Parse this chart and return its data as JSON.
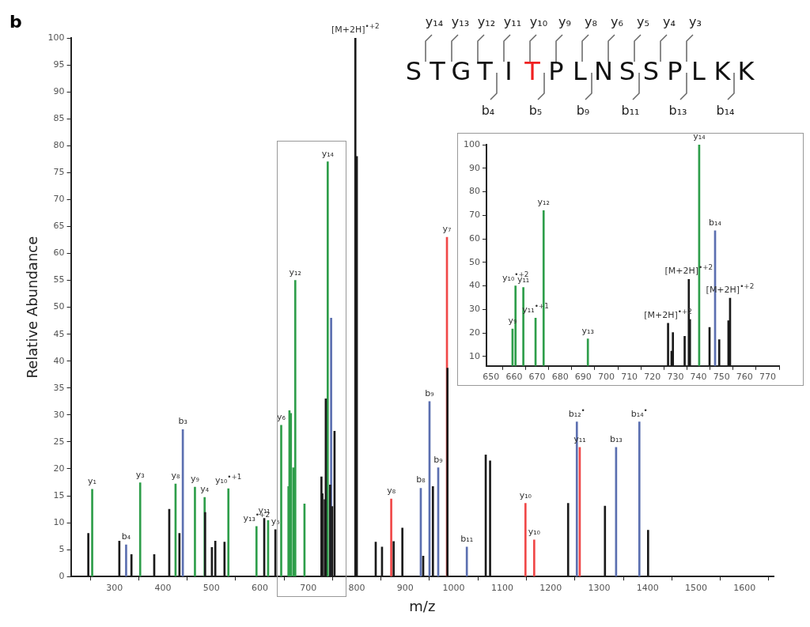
{
  "chart_data": [
    {
      "type": "bar",
      "xlabel": "m/z",
      "ylabel": "Relative Abundance",
      "xlim": [
        210,
        1660
      ],
      "ylim": [
        0,
        100
      ],
      "xticks": [
        300,
        400,
        500,
        600,
        700,
        800,
        900,
        1000,
        1100,
        1200,
        1300,
        1400,
        1500,
        1600
      ],
      "yticks": [
        0,
        5,
        10,
        15,
        20,
        25,
        30,
        35,
        40,
        45,
        50,
        55,
        60,
        65,
        70,
        75,
        80,
        85,
        90,
        95,
        100
      ],
      "series": [
        {
          "color": "#1a1a1a",
          "x": [
            246,
            310,
            335,
            382,
            413,
            434,
            487,
            501,
            508,
            527,
            609,
            632,
            727,
            729,
            734,
            736,
            745,
            749,
            754,
            797,
            800,
            839,
            852,
            876,
            894,
            937,
            957,
            987,
            1066,
            1075,
            1236,
            1312,
            1401
          ],
          "values": [
            8.0,
            6.6,
            4.1,
            4.1,
            12.5,
            8.0,
            11.9,
            5.4,
            6.6,
            6.4,
            10.8,
            8.7,
            18.5,
            15.4,
            14.3,
            33,
            17,
            13,
            27,
            100,
            78,
            6.4,
            5.5,
            6.5,
            9.0,
            3.8,
            16.7,
            38.7,
            22.6,
            21.5,
            13.6,
            13.1,
            8.6
          ]
        },
        {
          "color": "#2e9e4a",
          "x": [
            254,
            353,
            426,
            466,
            486,
            535,
            593,
            617,
            644,
            659,
            661,
            664,
            669,
            673,
            692,
            740
          ],
          "values": [
            16.2,
            17.4,
            17.2,
            16.6,
            14.7,
            16.3,
            9.3,
            10.4,
            28.1,
            16.7,
            30.8,
            30.3,
            20.2,
            55,
            13.5,
            77
          ]
        },
        {
          "color": "#5b6fb0",
          "x": [
            324,
            441,
            747,
            932,
            950,
            968,
            1027,
            1254,
            1335,
            1383
          ],
          "values": [
            5.9,
            27.3,
            48,
            16.4,
            32.5,
            20.2,
            5.5,
            28.7,
            24.0,
            28.7
          ]
        },
        {
          "color": "#f04848",
          "x": [
            871,
            986,
            1148,
            1166,
            1260
          ],
          "values": [
            14.4,
            63,
            13.6,
            6.8,
            24.0
          ]
        }
      ],
      "annotations": [
        "b",
        {
          "text": "y₁",
          "x": 254,
          "y": 16.2
        },
        {
          "text": "b₄",
          "x": 324,
          "y": 5.9
        },
        {
          "text": "y₃",
          "x": 353,
          "y": 17.4
        },
        {
          "text": "y₈",
          "x": 426,
          "y": 17.2
        },
        {
          "text": "b₃",
          "x": 441,
          "y": 27.3
        },
        {
          "text": "y₉",
          "x": 466,
          "y": 16.6
        },
        {
          "text": "y₄",
          "x": 486,
          "y": 14.7
        },
        {
          "text": "y₁₀$^{•+1}$",
          "x": 535,
          "y": 16.3
        },
        {
          "text": "y₁₃$^{•+2}$",
          "x": 593,
          "y": 9.3
        },
        {
          "text": "y₁₁",
          "x": 609,
          "y": 10.8
        },
        {
          "text": "y₅",
          "x": 632,
          "y": 8.7
        },
        {
          "text": "y₆",
          "x": 644,
          "y": 28.1
        },
        {
          "text": "y₁₂",
          "x": 673,
          "y": 55
        },
        {
          "text": "y₁₄",
          "x": 740,
          "y": 77
        },
        {
          "text": "[M+2H]$^{•+2}$",
          "x": 797,
          "y": 100
        },
        {
          "text": "y₈",
          "x": 871,
          "y": 14.4
        },
        {
          "text": "b₈",
          "x": 932,
          "y": 16.4
        },
        {
          "text": "b₉",
          "x": 950,
          "y": 32.5
        },
        {
          "text": "b₉",
          "x": 968,
          "y": 20.2
        },
        {
          "text": "y₇",
          "x": 986,
          "y": 63
        },
        {
          "text": "b₁₁",
          "x": 1027,
          "y": 5.5
        },
        {
          "text": "y₁₀",
          "x": 1148,
          "y": 13.6
        },
        {
          "text": "y₁₀",
          "x": 1166,
          "y": 6.8
        },
        {
          "text": "b₁₂$^{•}$",
          "x": 1254,
          "y": 28.7
        },
        {
          "text": "y₁₁",
          "x": 1260,
          "y": 24.0
        },
        {
          "text": "b₁₃",
          "x": 1335,
          "y": 24.0
        },
        {
          "text": "b₁₄$^{•}$",
          "x": 1383,
          "y": 28.7
        }
      ]
    },
    {
      "type": "bar",
      "xlim": [
        648,
        775
      ],
      "ylim": [
        6,
        100
      ],
      "xticks": [
        650,
        660,
        670,
        680,
        690,
        700,
        710,
        720,
        730,
        740,
        750,
        760,
        770
      ],
      "yticks": [
        10,
        20,
        30,
        40,
        50,
        60,
        70,
        80,
        90,
        100
      ],
      "series": [
        {
          "color": "#1a1a1a",
          "x": [
            726.8,
            728.3,
            728.9,
            734,
            735.8,
            736.3,
            744.8,
            749,
            753,
            753.7
          ],
          "values": [
            24.1,
            12.3,
            20.2,
            18.6,
            42.8,
            25.7,
            22.4,
            17.2,
            25.2,
            34.8
          ]
        },
        {
          "color": "#2e9e4a",
          "x": [
            659.3,
            660.6,
            664,
            669.3,
            672.8,
            692,
            740.3
          ],
          "values": [
            21.7,
            40,
            39.3,
            26.3,
            72,
            17.5,
            100
          ]
        },
        {
          "color": "#5b6fb0",
          "x": [
            747.2
          ],
          "values": [
            63.4
          ]
        }
      ],
      "annotations": [
        {
          "text": "y₉",
          "x": 659.3,
          "y": 21.7
        },
        {
          "text": "y₁₀$^{•+2}$",
          "x": 660.6,
          "y": 40
        },
        {
          "text": "y₁₁",
          "x": 664,
          "y": 39.3
        },
        {
          "text": "y₁₁$^{•+1}$",
          "x": 669.3,
          "y": 26.3
        },
        {
          "text": "y₁₂",
          "x": 672.8,
          "y": 72
        },
        {
          "text": "y₁₃",
          "x": 692,
          "y": 17.5
        },
        {
          "text": "[M+2H]$^{•+2}$",
          "x": 726.8,
          "y": 24.1
        },
        {
          "text": "[M+2H]$^{•+2}$",
          "x": 735.8,
          "y": 42.8
        },
        {
          "text": "y₁₄",
          "x": 740.3,
          "y": 100
        },
        {
          "text": "b₁₄",
          "x": 747.2,
          "y": 63.4
        },
        {
          "text": "[M+2H]$^{•+2}$",
          "x": 753.7,
          "y": 34.8
        }
      ]
    },
    {
      "type": "other",
      "annotations": [
        "y₁₄",
        "y₁₃",
        "y₁₂",
        "y₁₁",
        "y₁₀",
        "y₉",
        "y₈",
        "y₆",
        "y₅",
        "y₄",
        "y₃"
      ]
    },
    {
      "type": "other",
      "categories": [
        "S",
        "T",
        "G",
        "T",
        "I",
        "T",
        "P",
        "L",
        "N",
        "S",
        "S",
        "P",
        "L",
        "K",
        "K"
      ],
      "colors": [
        "#111111",
        "#111111",
        "#111111",
        "#111111",
        "#111111",
        "#f02020",
        "#111111",
        "#111111",
        "#111111",
        "#111111",
        "#111111",
        "#111111",
        "#111111",
        "#111111",
        "#111111"
      ]
    },
    {
      "type": "other",
      "annotations": [
        "b₄",
        "b₅",
        "b₉",
        "b₁₁",
        "b₁₃",
        "b₁₄"
      ]
    }
  ]
}
